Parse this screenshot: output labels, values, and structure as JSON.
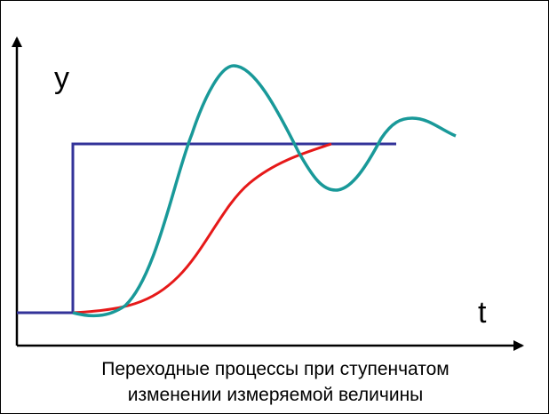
{
  "axes": {
    "y_label": "y",
    "x_label": "t"
  },
  "caption": {
    "line1": "Переходные процессы при ступенчатом",
    "line2": "изменении измеряемой величины"
  },
  "colors": {
    "axis": "#000000",
    "step": "#333399",
    "aperiodic": "#e61919",
    "oscillatory": "#199999"
  }
}
